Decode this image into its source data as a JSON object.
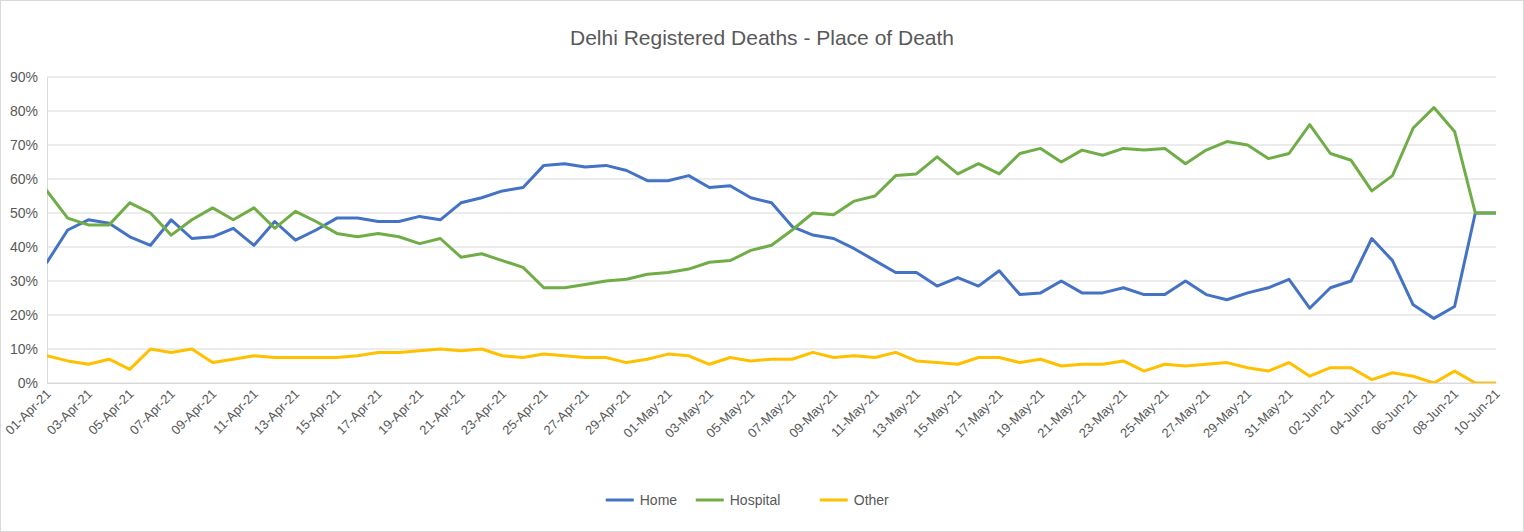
{
  "chart_data": {
    "type": "line",
    "title": "Delhi Registered Deaths - Place of Death",
    "categories": [
      "01-Apr-21",
      null,
      "03-Apr-21",
      null,
      "05-Apr-21",
      null,
      "07-Apr-21",
      null,
      "09-Apr-21",
      null,
      "11-Apr-21",
      null,
      "13-Apr-21",
      null,
      "15-Apr-21",
      null,
      "17-Apr-21",
      null,
      "19-Apr-21",
      null,
      "21-Apr-21",
      null,
      "23-Apr-21",
      null,
      "25-Apr-21",
      null,
      "27-Apr-21",
      null,
      "29-Apr-21",
      null,
      "01-May-21",
      null,
      "03-May-21",
      null,
      "05-May-21",
      null,
      "07-May-21",
      null,
      "09-May-21",
      null,
      "11-May-21",
      null,
      "13-May-21",
      null,
      "15-May-21",
      null,
      "17-May-21",
      null,
      "19-May-21",
      null,
      "21-May-21",
      null,
      "23-May-21",
      null,
      "25-May-21",
      null,
      "27-May-21",
      null,
      "29-May-21",
      null,
      "31-May-21",
      null,
      "02-Jun-21",
      null,
      "04-Jun-21",
      null,
      "06-Jun-21",
      null,
      "08-Jun-21",
      null,
      "10-Jun-21"
    ],
    "series": [
      {
        "name": "Home",
        "color": "#4472c4",
        "values": [
          35.5,
          45,
          48,
          47,
          43,
          40.5,
          48,
          42.5,
          43,
          45.5,
          40.5,
          47.5,
          42,
          45,
          48.5,
          48.5,
          47.5,
          47.5,
          49,
          48,
          53,
          54.5,
          56.5,
          57.5,
          64,
          64.5,
          63.5,
          64,
          62.5,
          59.5,
          59.5,
          61,
          57.5,
          58,
          54.5,
          53,
          46,
          43.5,
          42.5,
          39.5,
          36,
          32.5,
          32.5,
          28.5,
          31,
          28.5,
          33,
          26,
          26.5,
          30,
          26.5,
          26.5,
          28,
          26,
          26,
          30,
          26,
          24.5,
          26.5,
          28,
          30.5,
          22,
          28,
          30,
          42.5,
          36,
          23,
          19,
          22.5,
          50,
          50
        ]
      },
      {
        "name": "Hospital",
        "color": "#70ad47",
        "values": [
          56.5,
          48.5,
          46.5,
          46.5,
          53,
          50,
          43.5,
          48,
          51.5,
          48,
          51.5,
          45.5,
          50.5,
          47.5,
          44,
          43,
          44,
          43,
          41,
          42.5,
          37,
          38,
          36,
          34,
          28,
          28,
          29,
          30,
          30.5,
          32,
          32.5,
          33.5,
          35.5,
          36,
          39,
          40.5,
          45,
          50,
          49.5,
          53.5,
          55,
          61,
          61.5,
          66.5,
          61.5,
          64.5,
          61.5,
          67.5,
          69,
          65,
          68.5,
          67,
          69,
          68.5,
          69,
          64.5,
          68.5,
          71,
          70,
          66,
          67.5,
          76,
          67.5,
          65.5,
          56.5,
          61,
          75,
          81,
          74,
          50,
          50
        ]
      },
      {
        "name": "Other",
        "color": "#ffc000",
        "values": [
          8,
          6.5,
          5.5,
          7,
          4,
          10,
          9,
          10,
          6,
          7,
          8,
          7.5,
          7.5,
          7.5,
          7.5,
          8,
          9,
          9,
          9.5,
          10,
          9.5,
          10,
          8,
          7.5,
          8.5,
          8,
          7.5,
          7.5,
          6,
          7,
          8.5,
          8,
          5.5,
          7.5,
          6.5,
          7,
          7,
          9,
          7.5,
          8,
          7.5,
          9,
          6.5,
          6,
          5.5,
          7.5,
          7.5,
          6,
          7,
          5,
          5.5,
          5.5,
          6.5,
          3.5,
          5.5,
          5,
          5.5,
          6,
          4.5,
          3.5,
          6,
          2,
          4.5,
          4.5,
          1,
          3,
          2,
          0,
          3.5,
          0,
          0
        ]
      }
    ],
    "ylim": [
      0,
      90
    ],
    "yticks": [
      {
        "value": 0,
        "label": "0%"
      },
      {
        "value": 10,
        "label": "10%"
      },
      {
        "value": 20,
        "label": "20%"
      },
      {
        "value": 30,
        "label": "30%"
      },
      {
        "value": 40,
        "label": "40%"
      },
      {
        "value": 50,
        "label": "50%"
      },
      {
        "value": 60,
        "label": "60%"
      },
      {
        "value": 70,
        "label": "70%"
      },
      {
        "value": 80,
        "label": "80%"
      },
      {
        "value": 90,
        "label": "90%"
      }
    ],
    "grid": true,
    "legend": "bottom"
  }
}
